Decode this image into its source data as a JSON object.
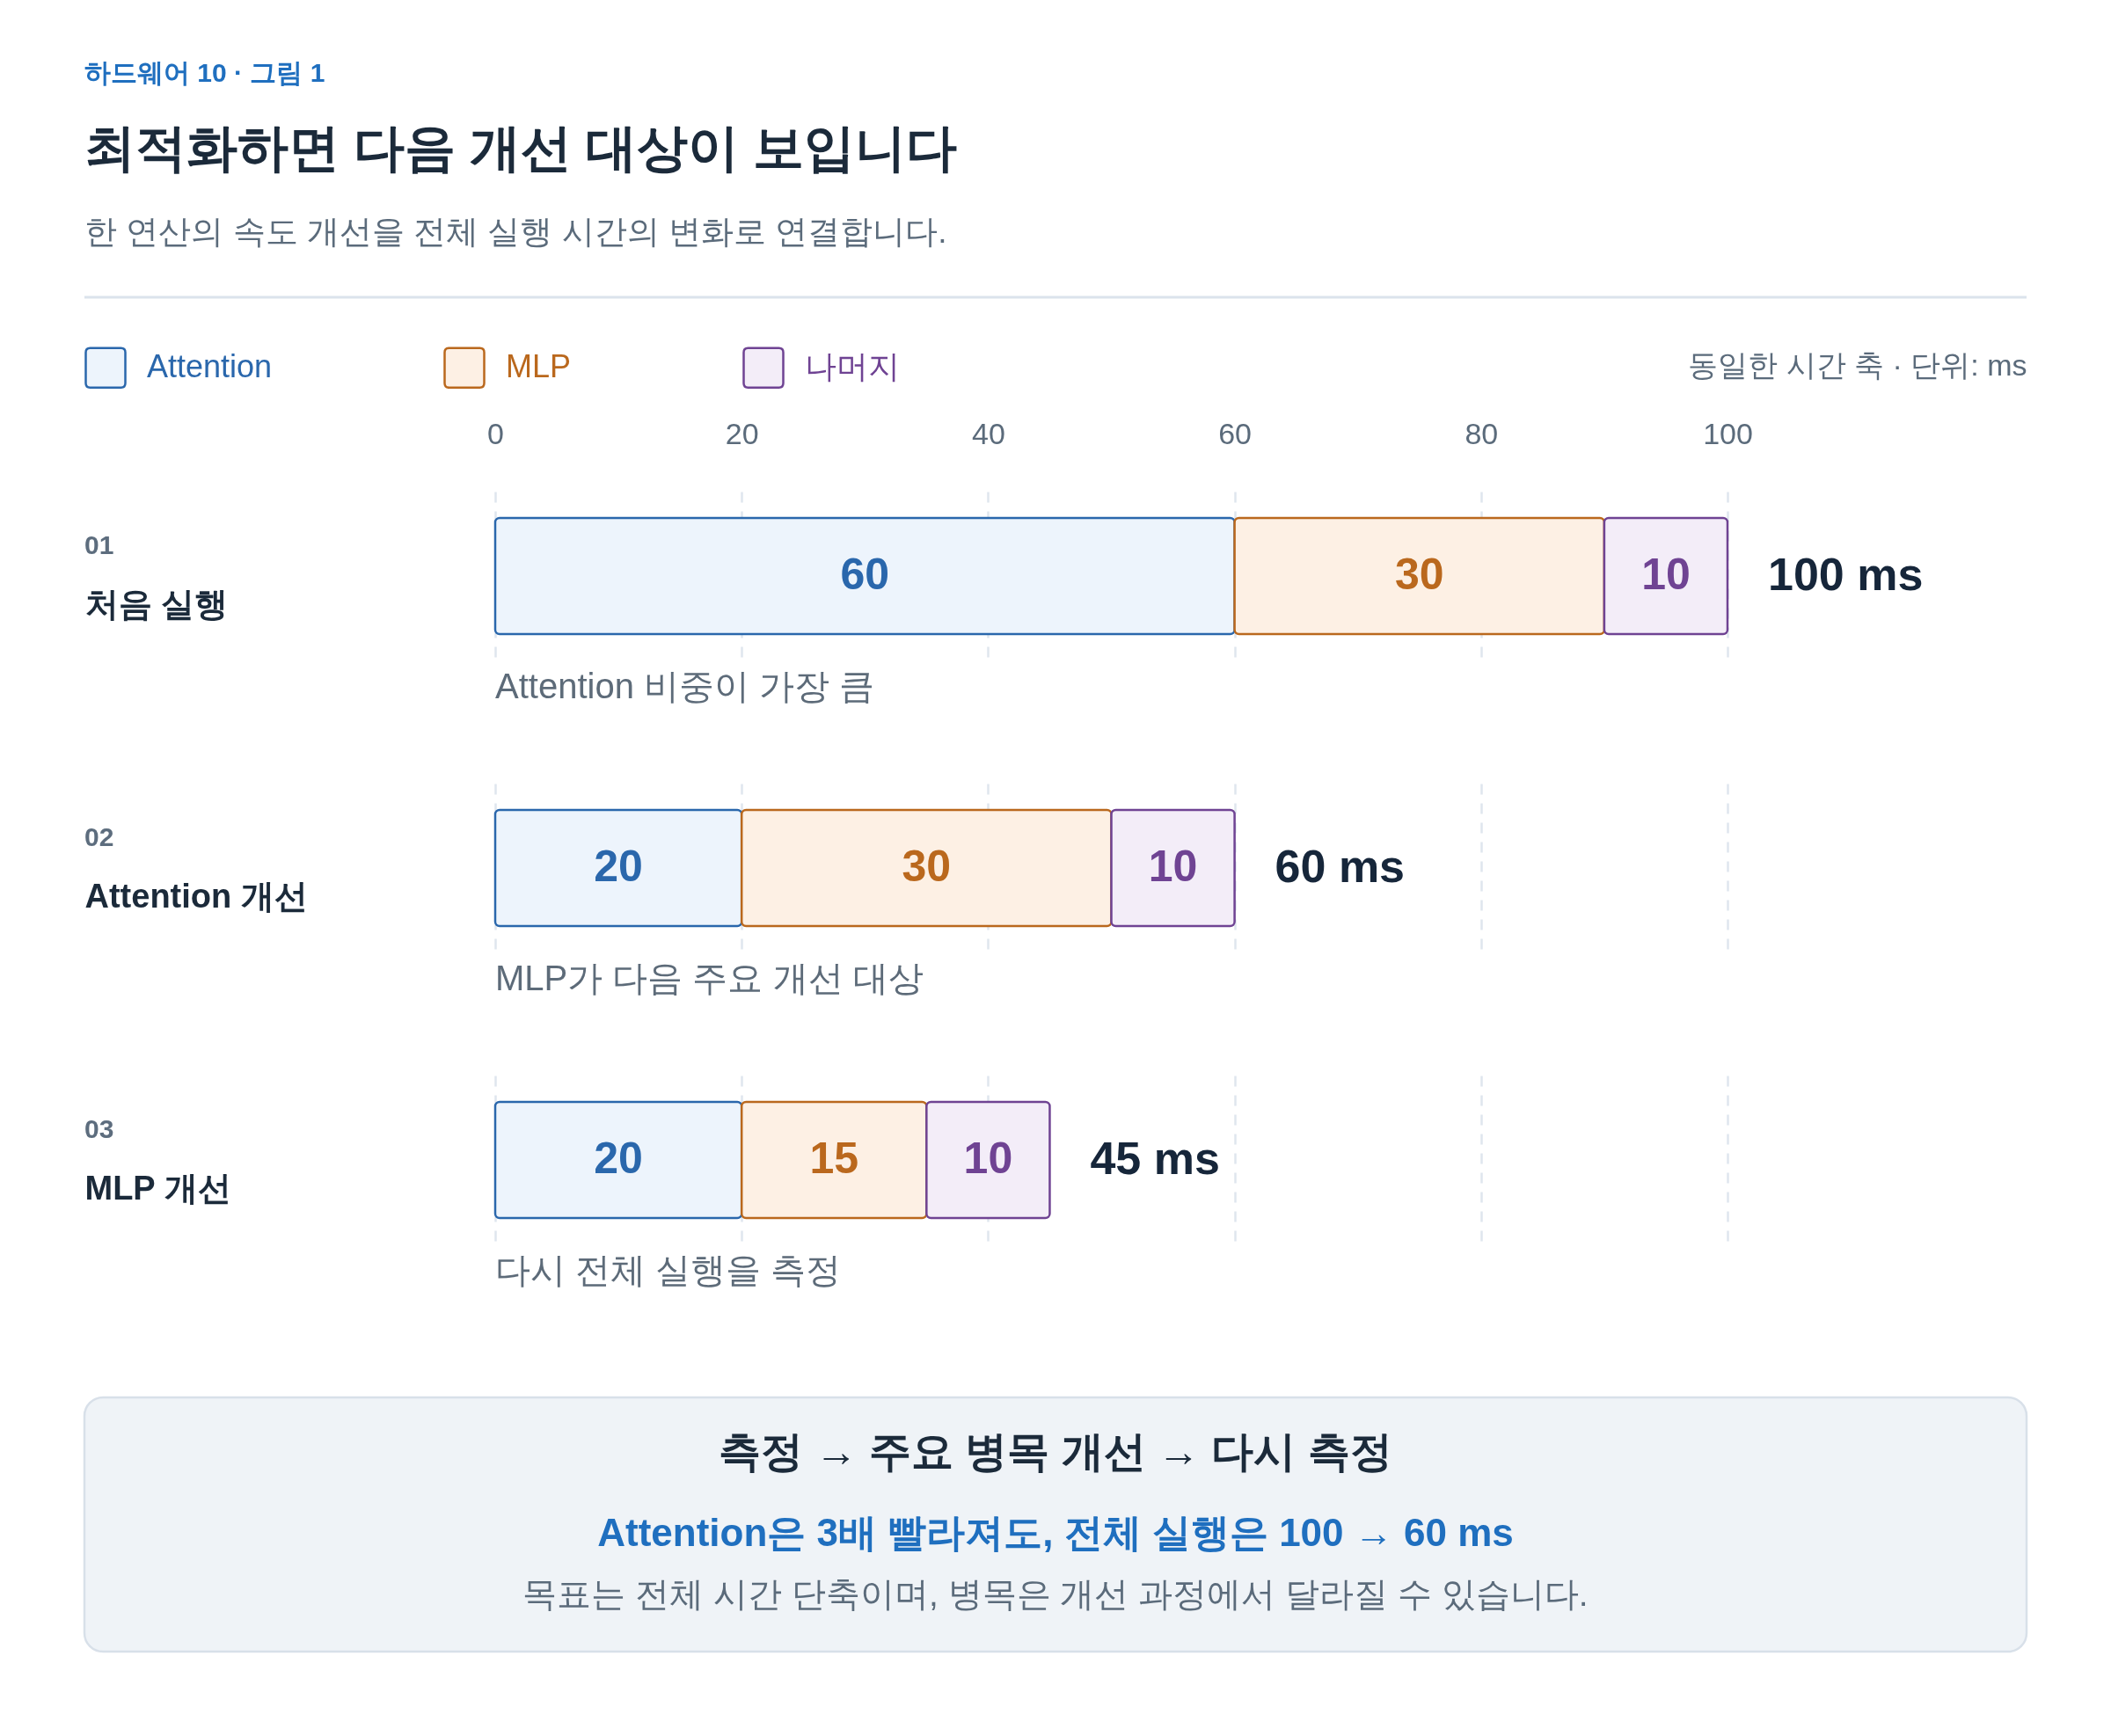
{
  "chart_data": {
    "type": "bar",
    "orientation": "horizontal",
    "stacked": true,
    "title": "최적화하면 다음 개선 대상이 보입니다",
    "subtitle": "한 연산의 속도 개선을 전체 실행 시간의 변화로 연결합니다.",
    "xlabel": "동일한 시간 축 · 단위: ms",
    "categories": [
      "처음 실행",
      "Attention 개선",
      "MLP 개선"
    ],
    "series": [
      {
        "name": "Attention",
        "color": "#edf4fc",
        "values": [
          60,
          20,
          20
        ]
      },
      {
        "name": "MLP",
        "color": "#fdf0e4",
        "values": [
          30,
          30,
          15
        ]
      },
      {
        "name": "나머지",
        "color": "#f3edf8",
        "values": [
          10,
          10,
          10
        ]
      }
    ],
    "xlim": [
      0,
      100
    ],
    "xticks": [
      0,
      20,
      40,
      60,
      80,
      100
    ],
    "grid": "x",
    "legend": "top left",
    "data_labels": true,
    "totals": [
      "100 ms",
      "60 ms",
      "45 ms"
    ],
    "annotations": [
      "하드웨어 10 · 그림 1",
      "01",
      "Attention 비중이 가장 큼",
      "02",
      "MLP가 다음 주요 개선 대상",
      "03",
      "다시 전체 실행을 측정",
      "측정 → 주요 병목 개선 → 다시 측정",
      "Attention은 3배 빨라져도, 전체 실행은 100 → 60 ms",
      "목표는 전체 시간 단축이며, 병목은 개선 과정에서 달라질 수 있습니다."
    ]
  }
}
